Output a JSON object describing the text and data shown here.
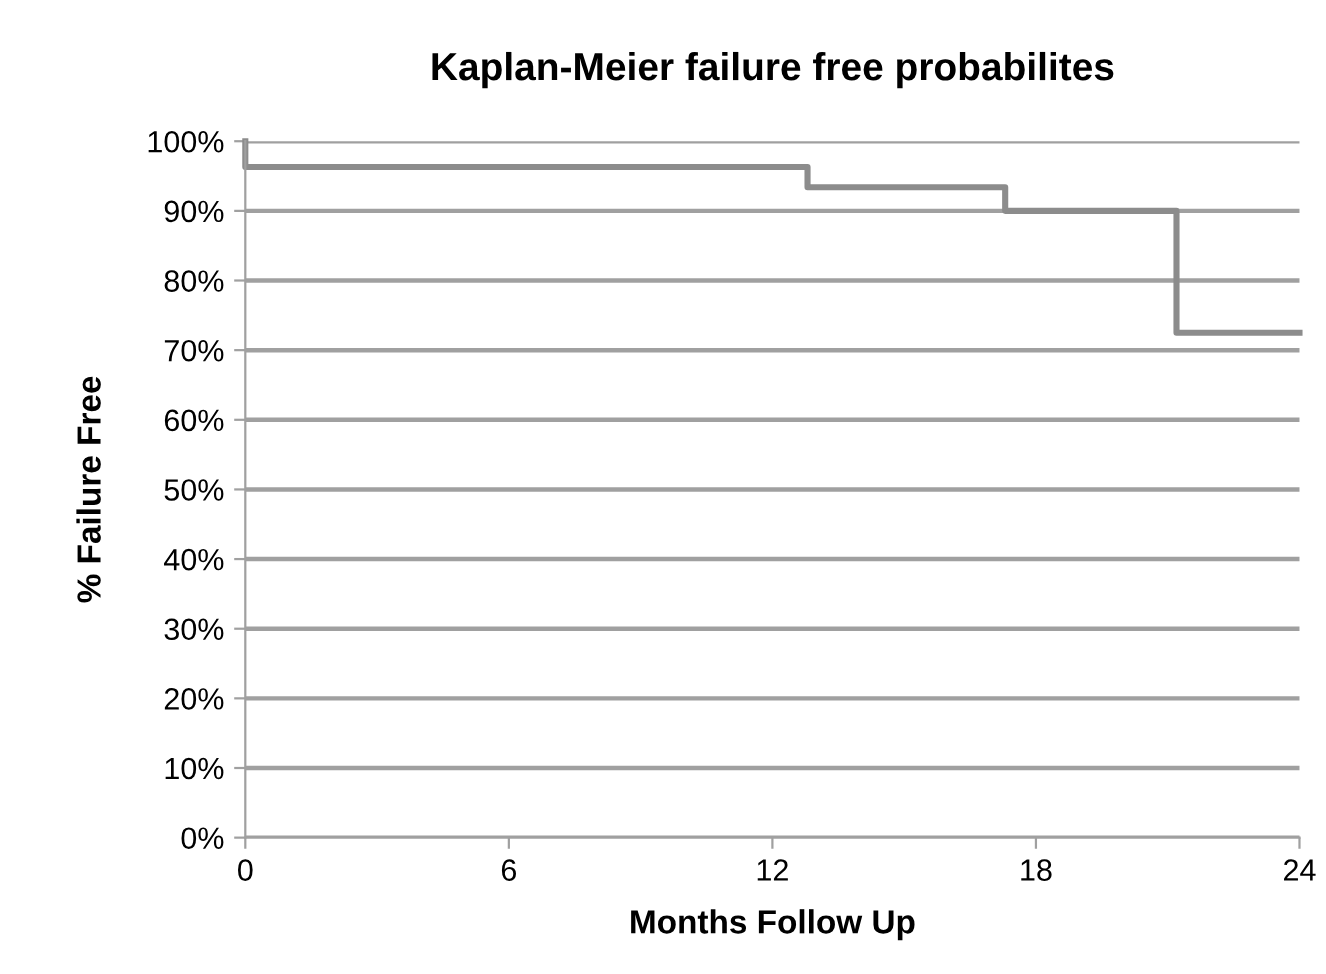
{
  "chart_data": {
    "type": "step",
    "title": "Kaplan-Meier failure free probabilites",
    "xlabel": "Months Follow Up",
    "ylabel": "% Failure Free",
    "series": [
      {
        "color": "#8c8c8c",
        "x": [
          0,
          0,
          12.8,
          17.3,
          21.2,
          24
        ],
        "values": [
          100,
          96.3,
          93.4,
          90,
          72.5,
          72.5
        ]
      }
    ],
    "xlim": [
      0,
      24
    ],
    "xticks": [
      0,
      6,
      12,
      18,
      24
    ],
    "ylim": [
      0,
      100
    ],
    "yticks": [
      {
        "value": 0,
        "label": "0%"
      },
      {
        "value": 10,
        "label": "10%"
      },
      {
        "value": 20,
        "label": "20%"
      },
      {
        "value": 30,
        "label": "30%"
      },
      {
        "value": 40,
        "label": "40%"
      },
      {
        "value": 50,
        "label": "50%"
      },
      {
        "value": 60,
        "label": "60%"
      },
      {
        "value": 70,
        "label": "70%"
      },
      {
        "value": 80,
        "label": "80%"
      },
      {
        "value": 90,
        "label": "90%"
      },
      {
        "value": 100,
        "label": "100%"
      }
    ],
    "grid": "y",
    "marker": "none",
    "line_style": "solid"
  }
}
